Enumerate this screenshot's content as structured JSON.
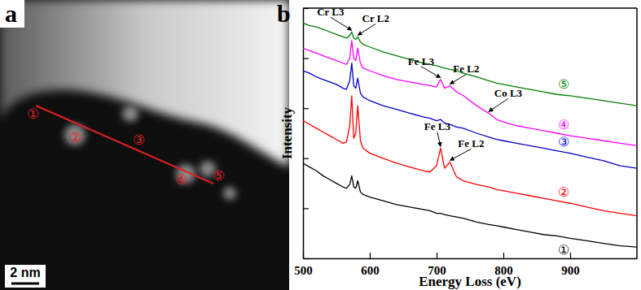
{
  "figure_labels": [
    "a",
    "b"
  ],
  "image": {
    "markers": [
      "①",
      "②",
      "③",
      "④",
      "⑤"
    ],
    "scale_bar": "2 nm"
  },
  "chart_data": {
    "type": "line",
    "xlabel": "Energy Loss (eV)",
    "ylabel": "Intensity",
    "xlim": [
      500,
      1000
    ],
    "xticks": [
      500,
      600,
      700,
      800,
      900
    ],
    "ylim": [
      0,
      100
    ],
    "yticks": [
      0,
      20,
      40,
      60,
      80,
      100
    ],
    "tick_labels": "x",
    "x": [
      500,
      510,
      520,
      530,
      540,
      550,
      560,
      565,
      570,
      573,
      576,
      579,
      582,
      586,
      590,
      600,
      620,
      640,
      660,
      680,
      690,
      700,
      706,
      712,
      720,
      730,
      740,
      760,
      778,
      790,
      800,
      820,
      840,
      860,
      880,
      900,
      925,
      950,
      975,
      1000
    ],
    "series": [
      {
        "name": "①",
        "color": "#000000",
        "values": [
          38,
          36.5,
          35,
          33,
          31.5,
          30,
          28.5,
          28,
          29.5,
          33,
          28.5,
          28,
          31,
          26.5,
          25.5,
          24.5,
          23,
          21.5,
          20.5,
          19.5,
          19,
          18,
          18,
          17.5,
          17,
          16.5,
          16,
          14.5,
          13.5,
          13,
          12.5,
          11.5,
          10.5,
          9.5,
          9,
          8,
          7,
          6,
          5,
          4.5
        ]
      },
      {
        "name": "②",
        "color": "#ff0000",
        "values": [
          55,
          53.5,
          52,
          50.5,
          49,
          47.5,
          46,
          46.5,
          53,
          65,
          48,
          50,
          61,
          47,
          44,
          42,
          40,
          38,
          36.5,
          35,
          34.5,
          37,
          44,
          36,
          38.5,
          32.5,
          31,
          29.5,
          28.5,
          27.5,
          27,
          26,
          25,
          24,
          23,
          22,
          20.5,
          19,
          18,
          17
        ]
      },
      {
        "name": "③",
        "color": "#0000cc",
        "values": [
          75,
          74,
          72.5,
          71.5,
          70.5,
          69.5,
          68,
          67.5,
          71,
          78,
          69,
          68,
          72,
          66,
          64.5,
          63,
          61,
          59.5,
          58,
          56.5,
          56,
          55,
          55.5,
          54,
          53.5,
          52.5,
          52,
          50,
          48.5,
          47.5,
          47,
          46,
          45,
          44,
          43,
          42,
          40.5,
          39,
          37,
          36
        ]
      },
      {
        "name": "④",
        "color": "#ff00ff",
        "values": [
          84,
          83,
          82,
          81,
          80,
          79,
          78,
          77.5,
          80,
          87,
          80,
          79,
          84,
          78,
          76,
          75,
          73,
          71.5,
          70.5,
          69.5,
          69,
          68.5,
          71.5,
          68,
          69,
          66.5,
          65,
          61,
          58,
          55.5,
          54.5,
          53,
          52,
          51,
          50,
          49,
          48,
          47,
          46,
          45
        ]
      },
      {
        "name": "⑤",
        "color": "#008000",
        "values": [
          94,
          93,
          92.5,
          91.5,
          90.5,
          89.5,
          88.5,
          88,
          89,
          90.5,
          88,
          87.5,
          88.5,
          86.5,
          85.5,
          84.5,
          82.5,
          81,
          79.5,
          78,
          77.5,
          77,
          76.5,
          76,
          75.5,
          75,
          74,
          72.5,
          71,
          70,
          69.5,
          68.5,
          67.5,
          66.5,
          65.5,
          65,
          64,
          63,
          62,
          61
        ]
      }
    ],
    "annotations": [
      {
        "text": "Cr L3",
        "x": 573,
        "y": 90.5
      },
      {
        "text": "Cr L2",
        "x": 582,
        "y": 88.5
      },
      {
        "text": "Fe L3",
        "x": 706,
        "y": 71.5
      },
      {
        "text": "Fe L2",
        "x": 720,
        "y": 69
      },
      {
        "text": "Co L3",
        "x": 778,
        "y": 58
      },
      {
        "text": "Fe L3",
        "x": 706,
        "y": 44
      },
      {
        "text": "Fe L2",
        "x": 720,
        "y": 38.5
      }
    ]
  }
}
